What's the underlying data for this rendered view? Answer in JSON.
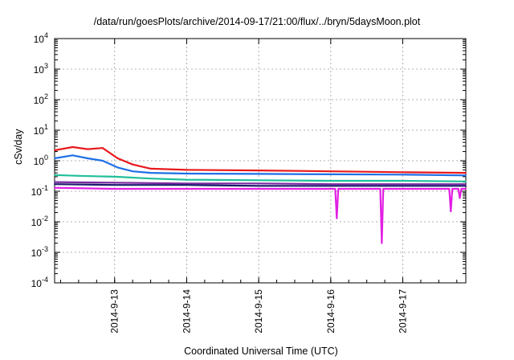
{
  "chart_data": {
    "type": "line",
    "title": "/data/run/goesPlots/archive/2014-09-17/21:00/flux/../bryn/5daysMoon.plot",
    "xlabel": "Coordinated Universal Time (UTC)",
    "ylabel": "cSv/day",
    "x_range": [
      "2014-09-12T04:00",
      "2014-09-17T21:00"
    ],
    "x_ticks": [
      "2014-9-13",
      "2014-9-14",
      "2014-9-15",
      "2014-9-16",
      "2014-9-17"
    ],
    "y_scale": "log",
    "y_range": [
      0.0001,
      10000
    ],
    "y_ticks": [
      {
        "base": "10",
        "exp": "-4"
      },
      {
        "base": "10",
        "exp": "-3"
      },
      {
        "base": "10",
        "exp": "-2"
      },
      {
        "base": "10",
        "exp": "-1"
      },
      {
        "base": "10",
        "exp": "0"
      },
      {
        "base": "10",
        "exp": "1"
      },
      {
        "base": "10",
        "exp": "2"
      },
      {
        "base": "10",
        "exp": "3"
      },
      {
        "base": "10",
        "exp": "4"
      }
    ],
    "grid": true,
    "legend": "none",
    "series": [
      {
        "color": "#e8191c",
        "x": [
          "2014-09-12T04:00",
          "2014-09-12T10:00",
          "2014-09-12T15:00",
          "2014-09-12T20:00",
          "2014-09-13T01:00",
          "2014-09-13T06:00",
          "2014-09-13T12:00",
          "2014-09-14T00:00",
          "2014-09-15T00:00",
          "2014-09-16T00:00",
          "2014-09-17T00:00",
          "2014-09-17T21:00"
        ],
        "values": [
          2.2,
          2.8,
          2.4,
          2.6,
          1.2,
          0.75,
          0.55,
          0.5,
          0.48,
          0.45,
          0.42,
          0.4
        ]
      },
      {
        "color": "#1e6fe6",
        "x": [
          "2014-09-12T04:00",
          "2014-09-12T10:00",
          "2014-09-12T15:00",
          "2014-09-12T20:00",
          "2014-09-13T01:00",
          "2014-09-13T06:00",
          "2014-09-13T12:00",
          "2014-09-14T00:00",
          "2014-09-15T00:00",
          "2014-09-16T00:00",
          "2014-09-17T00:00",
          "2014-09-17T21:00"
        ],
        "values": [
          1.2,
          1.5,
          1.2,
          1.0,
          0.6,
          0.45,
          0.4,
          0.38,
          0.37,
          0.36,
          0.35,
          0.33
        ]
      },
      {
        "color": "#1fbf9a",
        "x": [
          "2014-09-12T04:00",
          "2014-09-12T12:00",
          "2014-09-13T00:00",
          "2014-09-13T12:00",
          "2014-09-14T00:00",
          "2014-09-15T00:00",
          "2014-09-16T00:00",
          "2014-09-17T00:00",
          "2014-09-17T21:00"
        ],
        "values": [
          0.34,
          0.32,
          0.3,
          0.26,
          0.24,
          0.23,
          0.22,
          0.22,
          0.21
        ]
      },
      {
        "color": "#7a2aa0",
        "x": [
          "2014-09-12T04:00",
          "2014-09-13T00:00",
          "2014-09-14T00:00",
          "2014-09-15T00:00",
          "2014-09-16T00:00",
          "2014-09-17T00:00",
          "2014-09-17T21:00"
        ],
        "values": [
          0.2,
          0.19,
          0.18,
          0.18,
          0.17,
          0.17,
          0.17
        ]
      },
      {
        "color": "#1a1a6e",
        "x": [
          "2014-09-12T04:00",
          "2014-09-13T00:00",
          "2014-09-14T00:00",
          "2014-09-15T00:00",
          "2014-09-16T00:00",
          "2014-09-17T00:00",
          "2014-09-17T21:00"
        ],
        "values": [
          0.17,
          0.16,
          0.16,
          0.15,
          0.15,
          0.15,
          0.15
        ]
      },
      {
        "color": "#e21fe3",
        "x": [
          "2014-09-12T04:00",
          "2014-09-13T00:00",
          "2014-09-14T00:00",
          "2014-09-15T00:00",
          "2014-09-16T00:00",
          "2014-09-16T01:30",
          "2014-09-16T02:00",
          "2014-09-16T02:30",
          "2014-09-16T12:00",
          "2014-09-16T16:30",
          "2014-09-16T17:00",
          "2014-09-16T17:30",
          "2014-09-17T00:00",
          "2014-09-17T15:30",
          "2014-09-17T16:00",
          "2014-09-17T16:30",
          "2014-09-17T18:30",
          "2014-09-17T19:00",
          "2014-09-17T19:30",
          "2014-09-17T21:00"
        ],
        "values": [
          0.13,
          0.12,
          0.12,
          0.12,
          0.12,
          0.12,
          0.013,
          0.12,
          0.12,
          0.12,
          0.002,
          0.12,
          0.12,
          0.12,
          0.022,
          0.12,
          0.12,
          0.06,
          0.12,
          0.12
        ]
      }
    ]
  }
}
